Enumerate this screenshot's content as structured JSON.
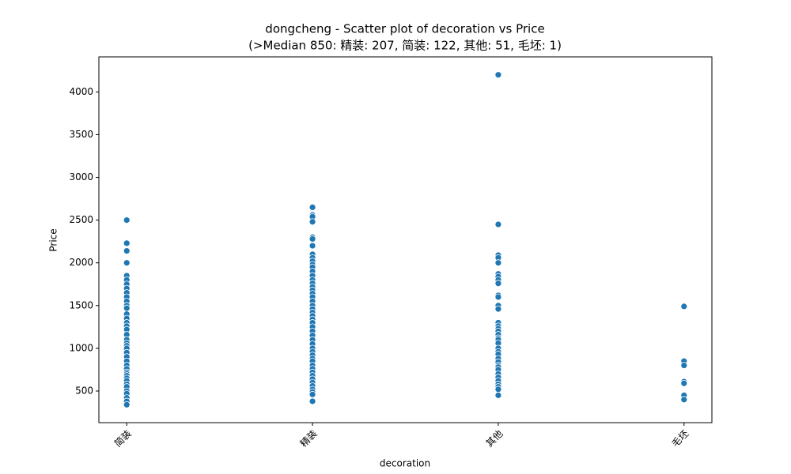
{
  "chart_data": {
    "type": "scatter",
    "title": "dongcheng - Scatter plot of decoration vs Price",
    "subtitle": "(>Median 850: 精装: 207, 简装: 122, 其他: 51, 毛坯: 1)",
    "x_label": "decoration",
    "y_label": "Price",
    "categories": [
      "简装",
      "精装",
      "其他",
      "毛坯"
    ],
    "values": [
      [
        2500,
        2230,
        2140,
        2000,
        1850,
        1800,
        1750,
        1700,
        1650,
        1600,
        1550,
        1500,
        1470,
        1400,
        1350,
        1300,
        1260,
        1220,
        1160,
        1100,
        1060,
        1030,
        1000,
        950,
        900,
        850,
        800,
        760,
        720,
        700,
        680,
        650,
        620,
        580,
        550,
        500,
        470,
        420,
        380,
        340
      ],
      [
        2650,
        2560,
        2540,
        2480,
        2300,
        2280,
        2200,
        2100,
        2060,
        2020,
        1980,
        1950,
        1900,
        1850,
        1800,
        1760,
        1720,
        1680,
        1640,
        1600,
        1550,
        1500,
        1460,
        1420,
        1380,
        1340,
        1300,
        1250,
        1200,
        1150,
        1100,
        1050,
        1000,
        960,
        920,
        880,
        850,
        800,
        760,
        720,
        680,
        640,
        600,
        560,
        520,
        490,
        460,
        380
      ],
      [
        4200,
        2450,
        2090,
        2060,
        2000,
        1870,
        1840,
        1800,
        1760,
        1620,
        1600,
        1500,
        1460,
        1300,
        1260,
        1230,
        1200,
        1160,
        1120,
        1100,
        1060,
        1000,
        960,
        930,
        880,
        840,
        800,
        780,
        750,
        700,
        660,
        620,
        580,
        550,
        520,
        450
      ],
      [
        1490,
        850,
        800,
        610,
        590,
        450,
        400
      ]
    ],
    "color": "#1f77b4",
    "ylim": [
      130,
      4410
    ],
    "yticks": [
      500,
      1000,
      1500,
      2000,
      2500,
      3000,
      3500,
      4000
    ],
    "grid": false
  }
}
